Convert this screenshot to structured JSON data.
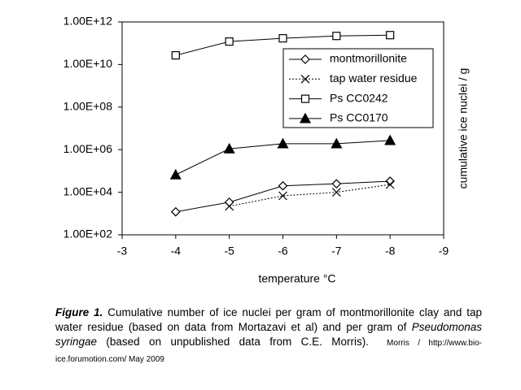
{
  "chart_data": {
    "type": "line",
    "x_label": "temperature °C",
    "y_label": "cumulative ice nuclei / g",
    "x": [
      -4,
      -5,
      -6,
      -7,
      -8
    ],
    "xlim": [
      -3,
      -9
    ],
    "xticks": [
      -3,
      -4,
      -5,
      -6,
      -7,
      -8,
      -9
    ],
    "ylim": [
      100,
      1000000000000
    ],
    "yscale": "log",
    "yticks": [
      {
        "value": 100,
        "label": "1.00E+02"
      },
      {
        "value": 10000,
        "label": "1.00E+04"
      },
      {
        "value": 1000000,
        "label": "1.00E+06"
      },
      {
        "value": 100000000,
        "label": "1.00E+08"
      },
      {
        "value": 10000000000,
        "label": "1.00E+10"
      },
      {
        "value": 1000000000000,
        "label": "1.00E+12"
      }
    ],
    "legend": "upper right",
    "series": [
      {
        "name": "montmorillonite",
        "color": "#000000",
        "marker": "diamond",
        "dash": "solid",
        "values": [
          1200,
          3400,
          20000,
          25000,
          33000
        ]
      },
      {
        "name": "tap water residue",
        "color": "#000000",
        "marker": "x",
        "dash": "dotted",
        "values": [
          null,
          2200,
          6800,
          10000,
          23000
        ]
      },
      {
        "name": "Ps CC0242",
        "color": "#000000",
        "marker": "square",
        "dash": "solid",
        "values": [
          27000000000,
          120000000000,
          170000000000,
          220000000000,
          240000000000
        ]
      },
      {
        "name": "Ps CC0170",
        "color": "#000000",
        "marker": "triangle",
        "dash": "solid",
        "values": [
          66000,
          1100000,
          1900000,
          1900000,
          2700000
        ]
      }
    ],
    "caption": [
      {
        "text": "Figure 1.",
        "style": "bold-italic"
      },
      {
        "text": " Cumulative number of ice nuclei per gram of montmorillonite clay and tap water residue (based on data from Mortazavi et al) and per gram of ",
        "style": "normal"
      },
      {
        "text": "Pseudomonas syringae",
        "style": "italic"
      },
      {
        "text": " (based on unpublished data from C.E. Morris).",
        "style": "normal"
      }
    ],
    "credit": "Morris / http://www.bio-ice.forumotion.com/  May 2009"
  }
}
